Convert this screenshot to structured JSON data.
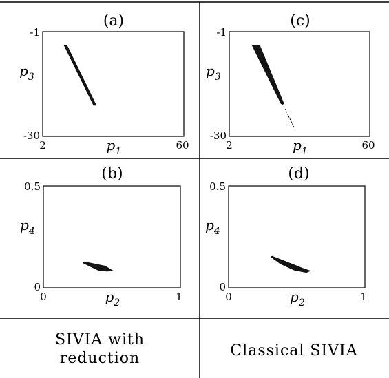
{
  "chart_data": [
    {
      "type": "scatter",
      "title": "(a)",
      "xlabel": "p",
      "xlabel_sub": "1",
      "ylabel": "p",
      "ylabel_sub": "3",
      "xlim": [
        2,
        60
      ],
      "ylim": [
        -30,
        -1
      ],
      "x_ticks": [
        "2",
        "60"
      ],
      "y_ticks": [
        "-1",
        "-30"
      ],
      "grid": false,
      "series": [
        {
          "region": [
            [
              10.8,
              -4.8
            ],
            [
              12.0,
              -4.8
            ],
            [
              24.0,
              -21.4
            ],
            [
              22.9,
              -21.4
            ]
          ]
        }
      ]
    },
    {
      "type": "scatter",
      "title": "(c)",
      "xlabel": "p",
      "xlabel_sub": "1",
      "ylabel": "p",
      "ylabel_sub": "3",
      "xlim": [
        2,
        60
      ],
      "ylim": [
        -30,
        -1
      ],
      "x_ticks": [
        "2",
        "60"
      ],
      "y_ticks": [
        "-1",
        "-30"
      ],
      "grid": false,
      "series": [
        {
          "region": [
            [
              11.4,
              -4.8
            ],
            [
              14.6,
              -4.8
            ],
            [
              24.6,
              -21.0
            ],
            [
              23.4,
              -21.0
            ]
          ],
          "tail": [
            [
              24.0,
              -21.0
            ],
            [
              28.9,
              -27.7
            ]
          ]
        }
      ]
    },
    {
      "type": "scatter",
      "title": "(b)",
      "xlabel": "p",
      "xlabel_sub": "2",
      "ylabel": "p",
      "ylabel_sub": "4",
      "xlim": [
        0,
        1
      ],
      "ylim": [
        0,
        0.5
      ],
      "x_ticks": [
        "0",
        "1"
      ],
      "y_ticks": [
        "0.5",
        "0"
      ],
      "grid": false,
      "series": [
        {
          "region": [
            [
              0.3,
              0.128
            ],
            [
              0.32,
              0.125
            ],
            [
              0.45,
              0.107
            ],
            [
              0.51,
              0.083
            ],
            [
              0.46,
              0.081
            ],
            [
              0.4,
              0.086
            ],
            [
              0.34,
              0.105
            ],
            [
              0.29,
              0.122
            ]
          ]
        }
      ]
    },
    {
      "type": "scatter",
      "title": "(d)",
      "xlabel": "p",
      "xlabel_sub": "2",
      "ylabel": "p",
      "ylabel_sub": "4",
      "xlim": [
        0,
        1
      ],
      "ylim": [
        0,
        0.5
      ],
      "x_ticks": [
        "0",
        "1"
      ],
      "y_ticks": [
        "0.5",
        "0"
      ],
      "grid": false,
      "series": [
        {
          "region": [
            [
              0.32,
              0.155
            ],
            [
              0.42,
              0.129
            ],
            [
              0.54,
              0.097
            ],
            [
              0.6,
              0.083
            ],
            [
              0.57,
              0.075
            ],
            [
              0.48,
              0.087
            ],
            [
              0.38,
              0.118
            ],
            [
              0.31,
              0.152
            ]
          ]
        }
      ]
    }
  ],
  "captions": {
    "left": [
      "SIVIA with",
      "reduction"
    ],
    "right": "Classical SIVIA"
  },
  "colors": {
    "line": "#000000",
    "fill": "#000000",
    "background": "#ffffff"
  }
}
